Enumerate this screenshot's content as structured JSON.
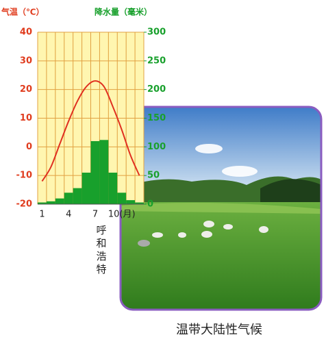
{
  "chart_data": {
    "type": "combo",
    "ylabel": "气温（℃）",
    "y2label": "降水量（毫米）",
    "categories": [
      "1",
      null,
      null,
      "4",
      null,
      null,
      "7",
      null,
      null,
      "10(月)",
      null,
      null
    ],
    "ylim": [
      -20,
      40
    ],
    "yticks": [
      -20,
      -10,
      0,
      10,
      20,
      30,
      40
    ],
    "y2lim": [
      0,
      300
    ],
    "y2ticks": [
      0,
      50,
      100,
      150,
      200,
      250,
      300
    ],
    "grid": true,
    "series": [
      {
        "type": "bar",
        "axis": "y2",
        "color": "#18a02c",
        "values": [
          3,
          5,
          10,
          20,
          28,
          55,
          110,
          112,
          55,
          20,
          7,
          3
        ]
      },
      {
        "type": "line",
        "axis": "y",
        "color": "#e03020",
        "values": [
          -12,
          -7,
          1,
          9,
          16,
          21,
          23,
          21,
          14,
          6,
          -3,
          -10
        ]
      }
    ],
    "annotation": "呼和浩特"
  },
  "caption": "温带大陆性气候"
}
